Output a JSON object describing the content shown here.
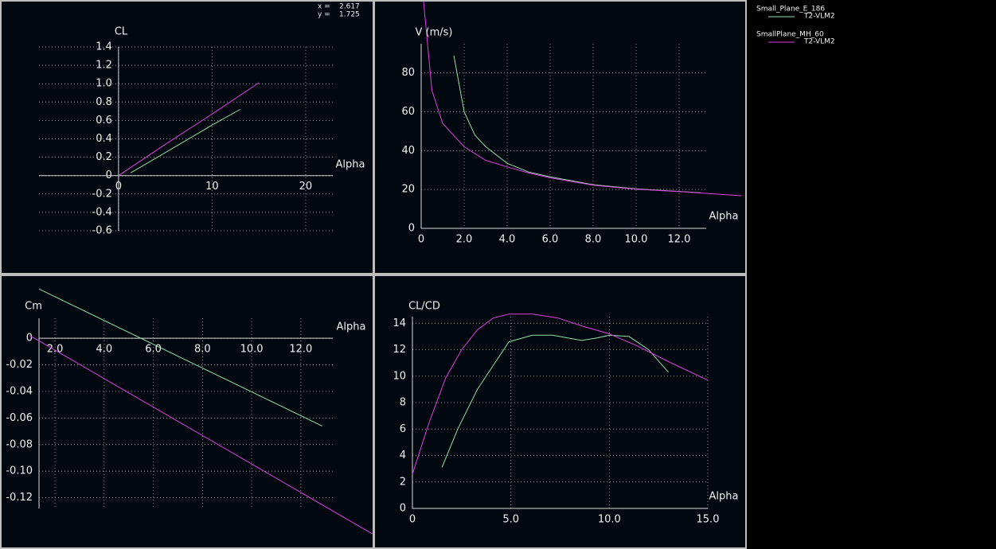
{
  "cursor": [
    {
      "label": "x =",
      "value": 2.617
    },
    {
      "label": "y =",
      "value": 1.725
    }
  ],
  "chart_data": [
    {
      "type": "line",
      "ylabel": "CL",
      "xlabel": "Alpha",
      "xlim": [
        -8.5,
        22.9
      ],
      "ylim": [
        -0.6,
        1.4
      ],
      "xticks": [
        0,
        10,
        20
      ],
      "yticks": [
        -0.6,
        -0.4,
        -0.2,
        0,
        0.2,
        0.4,
        0.6,
        0.8,
        {
          "value": 1,
          "label": "1.0"
        },
        1.2,
        1.4
      ],
      "grid": true,
      "series": [
        {
          "name": "Small_Plane_E_186",
          "polar": "T2-VLM2",
          "color": "#8fe0a8",
          "x": [
            1.3,
            5,
            10,
            13
          ],
          "values": [
            0.03,
            0.25,
            0.55,
            0.72
          ]
        },
        {
          "name": "SmallPlane_MH_60",
          "polar": "T2-VLM2",
          "color": "#e040e0",
          "x": [
            0,
            5,
            10,
            15
          ],
          "values": [
            0.0,
            0.34,
            0.67,
            1.01
          ]
        }
      ]
    },
    {
      "type": "line",
      "ylabel": "V (m/s)",
      "xlabel": "Alpha",
      "xlim": [
        0,
        13.26
      ],
      "ylim": [
        0,
        95
      ],
      "xticks": [
        0,
        {
          "value": 2,
          "label": "2.0"
        },
        {
          "value": 4,
          "label": "4.0"
        },
        {
          "value": 6,
          "label": "6.0"
        },
        {
          "value": 8,
          "label": "8.0"
        },
        {
          "value": 10,
          "label": "10.0"
        },
        {
          "value": 12,
          "label": "12.0"
        }
      ],
      "yticks": [
        0,
        20,
        40,
        60,
        80
      ],
      "grid": true,
      "series": [
        {
          "name": "Small_Plane_E_186",
          "color": "#8fe0a8",
          "x": [
            1.52,
            2,
            2.5,
            3,
            4,
            5,
            6,
            8,
            10,
            12,
            13
          ],
          "values": [
            89,
            60,
            48,
            42,
            33.5,
            29,
            26.5,
            22.5,
            20.3,
            19,
            18.3
          ]
        },
        {
          "name": "SmallPlane_MH_60",
          "color": "#e040e0",
          "x": [
            0.1,
            0.5,
            1,
            1.5,
            2,
            3,
            4,
            5,
            6,
            8,
            10,
            12,
            14.9
          ],
          "values": [
            118,
            71,
            54,
            48,
            42,
            35,
            31.6,
            28.5,
            26,
            22.2,
            20.1,
            18.9,
            16.8
          ]
        }
      ]
    },
    {
      "type": "line",
      "ylabel": "Cm",
      "xlabel": "Alpha",
      "xlim": [
        1.35,
        13.3
      ],
      "ylim": [
        -0.128,
        0.015
      ],
      "xticks": [
        {
          "value": 2,
          "label": "2.0"
        },
        {
          "value": 4,
          "label": "4.0"
        },
        {
          "value": 6,
          "label": "6.0"
        },
        {
          "value": 8,
          "label": "8.0"
        },
        {
          "value": 10,
          "label": "10.0"
        },
        {
          "value": 12,
          "label": "12.0"
        }
      ],
      "yticks": [
        {
          "value": -0.12,
          "label": "-0.12"
        },
        {
          "value": -0.1,
          "label": "-0.10"
        },
        -0.08,
        -0.06,
        -0.04,
        -0.02,
        0
      ],
      "grid": true,
      "series": [
        {
          "name": "Small_Plane_E_186",
          "color": "#8fe0a8",
          "x": [
            1.35,
            12.87
          ],
          "values": [
            0.037,
            -0.066
          ]
        },
        {
          "name": "SmallPlane_MH_60",
          "color": "#e040e0",
          "x": [
            0.97,
            14.9
          ],
          "values": [
            0.002,
            -0.147
          ]
        }
      ]
    },
    {
      "type": "line",
      "ylabel": "CL/CD",
      "xlabel": "Alpha",
      "xlim": [
        0,
        15
      ],
      "ylim": [
        0,
        14.5
      ],
      "xticks": [
        0,
        {
          "value": 5,
          "label": "5.0"
        },
        {
          "value": 10,
          "label": "10.0"
        },
        {
          "value": 15,
          "label": "15.0"
        }
      ],
      "yticks": [
        0,
        2,
        4,
        6,
        8,
        10,
        12,
        14
      ],
      "grid": true,
      "series": [
        {
          "name": "Small_Plane_E_186",
          "color": "#8fe0a8",
          "x": [
            1.5,
            2.3,
            3.3,
            4.1,
            4.9,
            6.1,
            7.1,
            8.6,
            9.4,
            10,
            11,
            12,
            13
          ],
          "values": [
            3.1,
            6,
            9,
            10.8,
            12.6,
            13.1,
            13.1,
            12.7,
            12.9,
            13.1,
            13,
            12,
            10.3
          ]
        },
        {
          "name": "SmallPlane_MH_60",
          "color": "#e040e0",
          "x": [
            0,
            0.85,
            1.7,
            2.5,
            3.3,
            4.1,
            4.9,
            6.1,
            7.4,
            8.6,
            10,
            11.4,
            13,
            15
          ],
          "values": [
            2.6,
            6.5,
            9.9,
            12,
            13.5,
            14.4,
            14.7,
            14.7,
            14.4,
            13.8,
            13.2,
            12.3,
            11.1,
            9.7
          ]
        }
      ]
    }
  ]
}
